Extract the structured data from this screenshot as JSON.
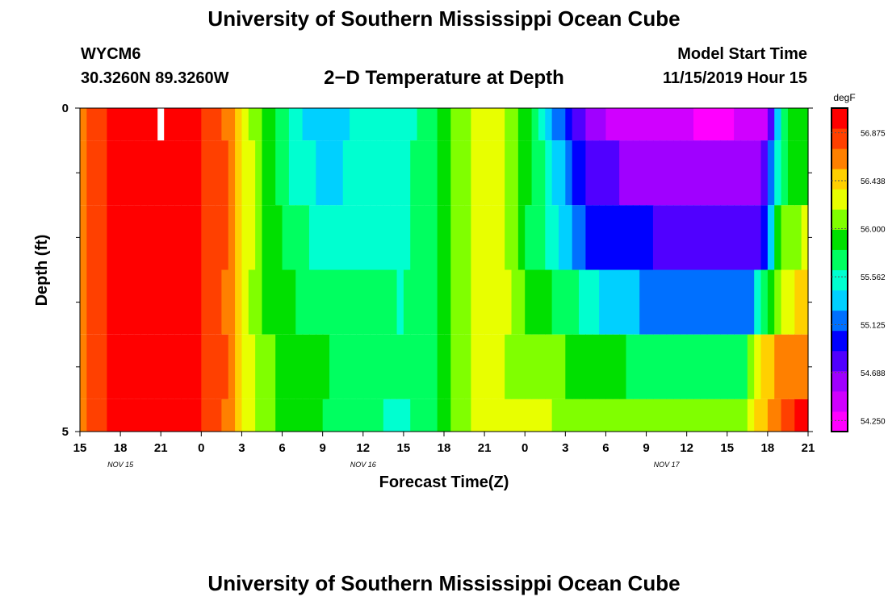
{
  "header": {
    "title": "University of Southern Mississippi Ocean Cube",
    "station_id": "WYCM6",
    "coordinates": "30.3260N 89.3260W",
    "plot_title": "2−D Temperature at Depth",
    "start_label": "Model Start Time",
    "start_value": "11/15/2019 Hour 15"
  },
  "footer": {
    "title": "University of Southern Mississippi Ocean Cube"
  },
  "chart_data": {
    "type": "heatmap",
    "xlabel": "Forecast Time(Z)",
    "ylabel": "Depth (ft)",
    "x_tick_labels": [
      "15",
      "18",
      "21",
      "0",
      "3",
      "6",
      "9",
      "12",
      "15",
      "18",
      "21",
      "0",
      "3",
      "6",
      "9",
      "12",
      "15",
      "18",
      "21"
    ],
    "x_date_labels": [
      {
        "label": "NOV 15",
        "hour": 3
      },
      {
        "label": "NOV 16",
        "hour": 21
      },
      {
        "label": "NOV 17",
        "hour": 43.5
      }
    ],
    "x_range_hours": [
      0,
      54
    ],
    "y_tick_labels": [
      "0",
      "5"
    ],
    "y_range": [
      0,
      5
    ],
    "y_minor_ticks": [
      1,
      2,
      3,
      4
    ],
    "colorbar": {
      "unit": "degF",
      "tick_labels": [
        "56.875",
        "56.438",
        "56.000",
        "55.562",
        "55.125",
        "54.688",
        "54.250"
      ],
      "range": [
        54.15,
        57.1
      ],
      "colors": [
        "#ff00ff",
        "#d000ff",
        "#a000ff",
        "#5000ff",
        "#0000ff",
        "#0070ff",
        "#00d0ff",
        "#00ffd0",
        "#00ff60",
        "#00e000",
        "#80ff00",
        "#e8ff00",
        "#ffd000",
        "#ff8000",
        "#ff4000",
        "#ff0000"
      ]
    },
    "depth_layers": [
      {
        "range": [
          0,
          0.5
        ],
        "knots": [
          [
            0,
            56.6
          ],
          [
            1.5,
            56.9
          ],
          [
            4,
            57.05
          ],
          [
            8,
            57.0
          ],
          [
            10.5,
            56.8
          ],
          [
            12,
            56.35
          ],
          [
            13.5,
            56.0
          ],
          [
            15,
            55.7
          ],
          [
            17,
            55.35
          ],
          [
            19,
            55.3
          ],
          [
            21,
            55.55
          ],
          [
            24,
            55.6
          ],
          [
            26,
            55.65
          ],
          [
            27,
            55.9
          ],
          [
            29,
            56.2
          ],
          [
            31,
            56.3
          ],
          [
            33,
            55.9
          ],
          [
            34.5,
            55.45
          ],
          [
            36,
            55.0
          ],
          [
            38,
            54.55
          ],
          [
            44,
            54.35
          ],
          [
            48,
            54.3
          ],
          [
            51,
            54.5
          ],
          [
            51.5,
            55.2
          ],
          [
            52.5,
            55.8
          ],
          [
            54,
            56.0
          ]
        ]
      },
      {
        "range": [
          0.5,
          1.5
        ],
        "knots": [
          [
            0,
            56.6
          ],
          [
            1.5,
            56.9
          ],
          [
            4,
            57.05
          ],
          [
            8,
            57.0
          ],
          [
            10.5,
            56.8
          ],
          [
            12,
            56.4
          ],
          [
            13.5,
            56.0
          ],
          [
            15,
            55.7
          ],
          [
            17,
            55.45
          ],
          [
            19,
            55.4
          ],
          [
            21,
            55.55
          ],
          [
            24,
            55.6
          ],
          [
            26,
            55.7
          ],
          [
            27,
            55.9
          ],
          [
            29,
            56.2
          ],
          [
            31,
            56.3
          ],
          [
            33,
            55.9
          ],
          [
            34.5,
            55.6
          ],
          [
            36,
            55.2
          ],
          [
            38,
            54.75
          ],
          [
            44,
            54.6
          ],
          [
            50,
            54.65
          ],
          [
            51,
            54.8
          ],
          [
            51.5,
            55.4
          ],
          [
            52.5,
            55.9
          ],
          [
            54,
            56.0
          ]
        ]
      },
      {
        "range": [
          1.5,
          2.5
        ],
        "knots": [
          [
            0,
            56.6
          ],
          [
            1.5,
            56.9
          ],
          [
            4,
            57.05
          ],
          [
            8,
            57.0
          ],
          [
            10.5,
            56.8
          ],
          [
            12,
            56.4
          ],
          [
            13.5,
            56.0
          ],
          [
            15,
            55.8
          ],
          [
            17,
            55.6
          ],
          [
            19,
            55.55
          ],
          [
            21,
            55.6
          ],
          [
            24,
            55.6
          ],
          [
            26,
            55.7
          ],
          [
            27,
            55.9
          ],
          [
            29,
            56.2
          ],
          [
            31,
            56.3
          ],
          [
            33,
            55.85
          ],
          [
            34.5,
            55.6
          ],
          [
            36,
            55.3
          ],
          [
            38,
            55.0
          ],
          [
            44,
            54.85
          ],
          [
            50,
            54.8
          ],
          [
            51,
            55.0
          ],
          [
            51.5,
            55.8
          ],
          [
            52.5,
            56.1
          ],
          [
            54,
            56.2
          ]
        ]
      },
      {
        "range": [
          2.5,
          3.5
        ],
        "knots": [
          [
            0,
            56.6
          ],
          [
            1.5,
            56.9
          ],
          [
            4,
            57.05
          ],
          [
            8,
            57.0
          ],
          [
            10.5,
            56.8
          ],
          [
            12,
            56.35
          ],
          [
            13.5,
            56.0
          ],
          [
            15,
            55.85
          ],
          [
            17,
            55.75
          ],
          [
            19,
            55.7
          ],
          [
            21,
            55.65
          ],
          [
            24,
            55.62
          ],
          [
            26,
            55.7
          ],
          [
            27,
            55.9
          ],
          [
            29,
            56.2
          ],
          [
            31,
            56.3
          ],
          [
            33,
            56.0
          ],
          [
            35,
            55.8
          ],
          [
            37,
            55.6
          ],
          [
            39,
            55.35
          ],
          [
            44,
            55.15
          ],
          [
            49,
            55.1
          ],
          [
            50,
            55.3
          ],
          [
            51,
            55.9
          ],
          [
            52.5,
            56.3
          ],
          [
            54,
            56.45
          ]
        ]
      },
      {
        "range": [
          3.5,
          4.5
        ],
        "knots": [
          [
            0,
            56.6
          ],
          [
            1.5,
            56.9
          ],
          [
            4,
            57.05
          ],
          [
            8,
            57.0
          ],
          [
            10.5,
            56.8
          ],
          [
            12,
            56.4
          ],
          [
            13.5,
            56.05
          ],
          [
            15,
            55.95
          ],
          [
            17,
            55.85
          ],
          [
            19,
            55.8
          ],
          [
            21,
            55.7
          ],
          [
            24,
            55.65
          ],
          [
            26,
            55.7
          ],
          [
            27,
            55.95
          ],
          [
            29,
            56.2
          ],
          [
            31,
            56.25
          ],
          [
            32,
            56.1
          ],
          [
            35,
            56.05
          ],
          [
            38,
            55.85
          ],
          [
            44,
            55.75
          ],
          [
            48,
            55.65
          ],
          [
            49,
            55.7
          ],
          [
            50,
            56.1
          ],
          [
            51,
            56.5
          ],
          [
            52.5,
            56.65
          ],
          [
            54,
            56.7
          ]
        ]
      },
      {
        "range": [
          4.5,
          5
        ],
        "knots": [
          [
            0,
            56.6
          ],
          [
            1.5,
            56.9
          ],
          [
            4,
            57.05
          ],
          [
            8,
            57.0
          ],
          [
            10.5,
            56.8
          ],
          [
            12,
            56.35
          ],
          [
            13.5,
            56.05
          ],
          [
            15,
            55.95
          ],
          [
            17,
            55.9
          ],
          [
            19,
            55.75
          ],
          [
            21,
            55.65
          ],
          [
            24,
            55.6
          ],
          [
            26,
            55.7
          ],
          [
            27,
            55.95
          ],
          [
            29,
            56.2
          ],
          [
            31,
            56.3
          ],
          [
            33,
            56.2
          ],
          [
            38,
            56.15
          ],
          [
            44,
            56.1
          ],
          [
            49,
            56.05
          ],
          [
            50,
            56.3
          ],
          [
            51,
            56.6
          ],
          [
            52.5,
            56.85
          ],
          [
            54,
            57.0
          ]
        ]
      }
    ],
    "marker": {
      "hour": 6,
      "depth_range": [
        0,
        0.5
      ],
      "color": "#ffffff"
    }
  }
}
